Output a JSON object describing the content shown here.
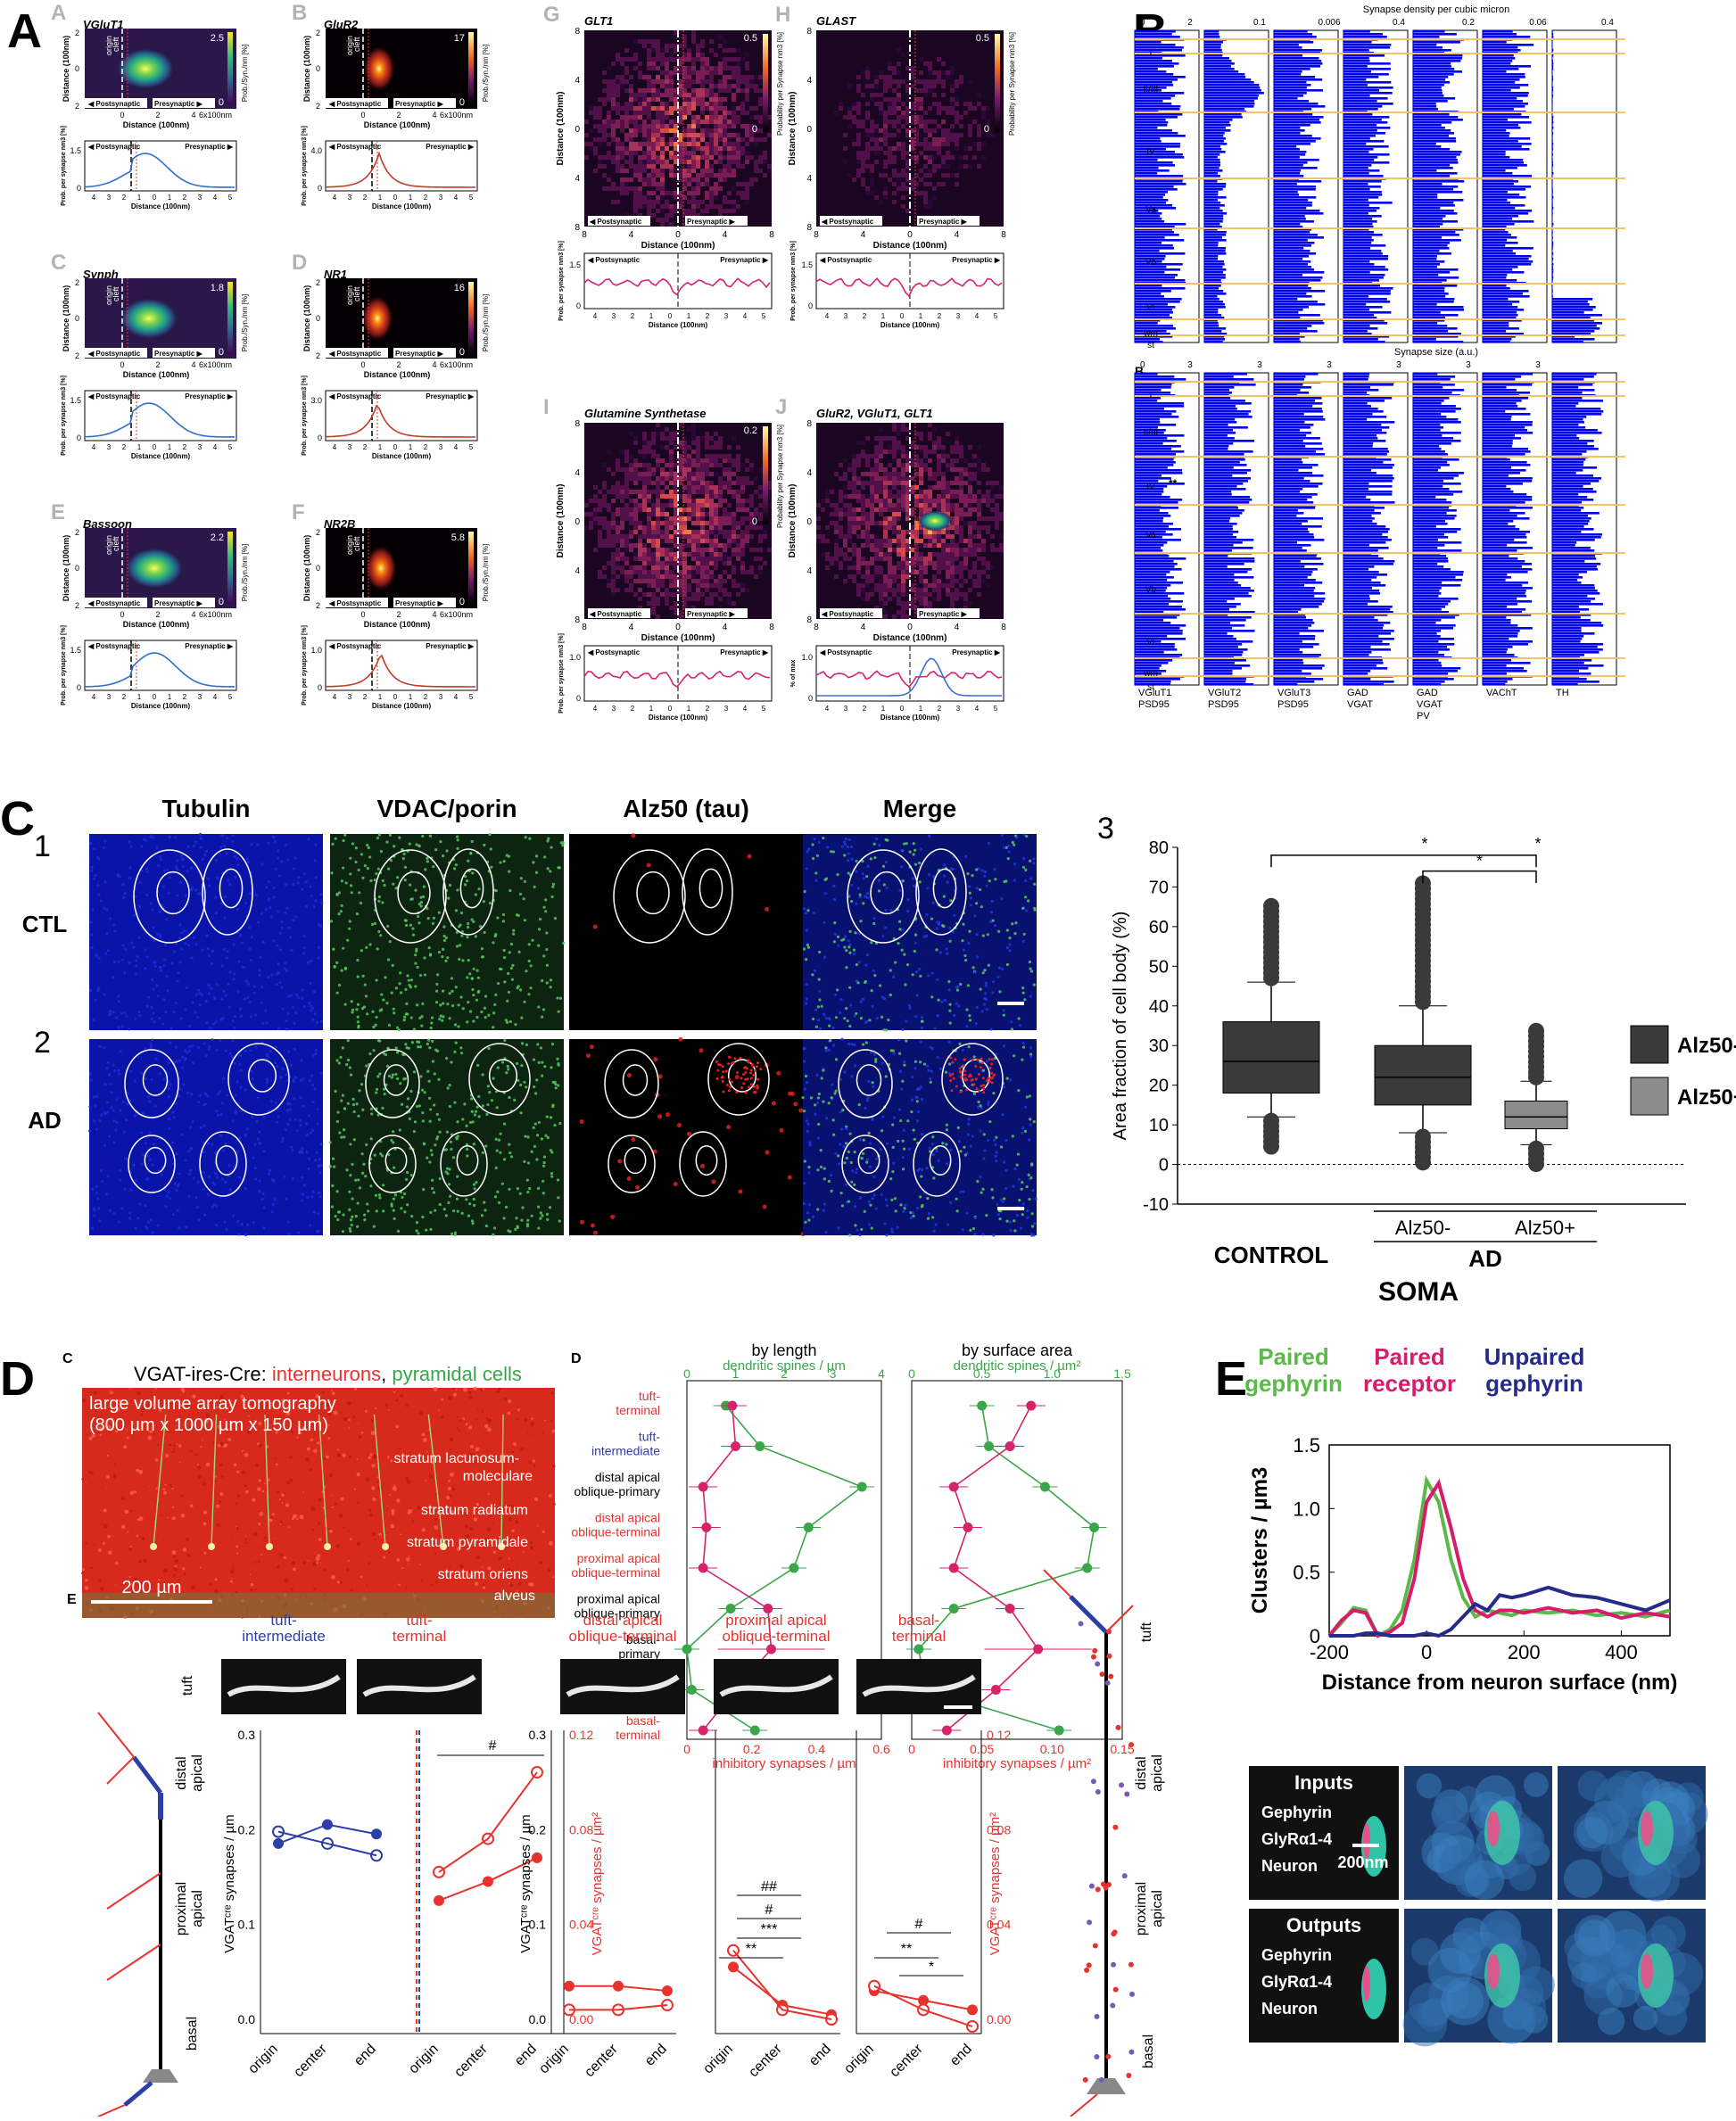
{
  "figure": {
    "panel_letters": {
      "A": "A",
      "B": "B",
      "C": "C",
      "D": "D",
      "E": "E"
    },
    "A": {
      "subpanels": [
        {
          "letter": "A",
          "name": "VGluT1",
          "max": "2.5",
          "pal": "viridis",
          "peak": 0.8
        },
        {
          "letter": "B",
          "name": "GluR2",
          "max": "17",
          "pal": "inferno",
          "peak": 0.4
        },
        {
          "letter": "C",
          "name": "Synph",
          "max": "1.8",
          "pal": "viridis",
          "peak": 1.0
        },
        {
          "letter": "D",
          "name": "NR1",
          "max": "16",
          "pal": "inferno",
          "peak": 0.3
        },
        {
          "letter": "E",
          "name": "Bassoon",
          "max": "2.2",
          "pal": "viridis",
          "peak": 1.3
        },
        {
          "letter": "F",
          "name": "NR2B",
          "max": "5.8",
          "pal": "inferno",
          "peak": 0.5
        }
      ],
      "square_subpanels": [
        {
          "letter": "G",
          "name": "GLT1",
          "max": "0.5"
        },
        {
          "letter": "H",
          "name": "GLAST",
          "max": "0.5"
        },
        {
          "letter": "I",
          "name": "Glutamine Synthetase",
          "max": "0.2"
        },
        {
          "letter": "J",
          "name": "GluR2, VGluT1, GLT1",
          "max": ""
        }
      ],
      "y_label": "Distance (100nm)",
      "x_label": "Distance (100nm)",
      "x_unit": "6x100nm",
      "cleft": "cleft",
      "origin": "origin",
      "postsynaptic": "Postsynaptic",
      "presynaptic": "Presynaptic",
      "prob_label": "Prob. per synapse nm3 [%]",
      "pctmax_label": "% of max",
      "cbar_label": "Prob./Syn./nm [%]",
      "cbar_label_sq": "Probability per Synapse nm3 [%]",
      "ticks_small": [
        "4",
        "3",
        "2",
        "1",
        "0",
        "1",
        "2",
        "3",
        "4",
        "5"
      ],
      "ticks_sq_y": [
        "8",
        "4",
        "0",
        "4",
        "8"
      ],
      "ticks_sq_x": [
        "8",
        "4",
        "0",
        "4",
        "8"
      ],
      "ticks_line_y": [
        "1.5",
        "1.0",
        "0.5",
        "0"
      ],
      "ticks_line_y_b": [
        "4.0",
        "3.0",
        "2.0",
        "1.0",
        "0"
      ],
      "ticks_heat_y": [
        "2",
        "0",
        "2"
      ],
      "ticks_heat_x": [
        "0",
        "2",
        "4"
      ],
      "ticks_line_ymax": {
        "VGluT1": "1.5",
        "GluR2": "4.0",
        "Synph": "1.5",
        "NR1": "3.0",
        "Bassoon": "1.5",
        "NR2B": "1.0",
        "GLT1": "1.5",
        "GLAST": "1.5",
        "Glutamine Synthetase": "1.0",
        "J": "1.0"
      }
    },
    "B": {
      "top_title": "Synapse density per cubic micron",
      "bottom_title": "Synapse size (a.u.)",
      "sub_a": "A",
      "sub_b": "B",
      "layers": [
        "I",
        "II/III",
        "IV",
        "Va",
        "Vb",
        "VI",
        "wm",
        "st"
      ],
      "top_axis_max": [
        "2",
        "0.1",
        "0.006",
        "0.4",
        "0.2",
        "0.06",
        "0.4"
      ],
      "top_axis_zero": "0",
      "bottom_axis_max": [
        "3",
        "3",
        "3",
        "3",
        "3",
        "3"
      ],
      "columns": [
        "VGluT1\nPSD95",
        "VGluT2\nPSD95",
        "VGluT3\nPSD95",
        "GAD\nVGAT",
        "GAD\nVGAT\nPV",
        "VAChT",
        "TH"
      ],
      "col_labels": [
        [
          "VGluT1",
          "PSD95"
        ],
        [
          "VGluT2",
          "PSD95"
        ],
        [
          "VGluT3",
          "PSD95"
        ],
        [
          "GAD",
          "VGAT"
        ],
        [
          "GAD",
          "VGAT",
          "PV"
        ],
        [
          "VAChT"
        ],
        [
          "TH"
        ]
      ],
      "star": "**"
    },
    "C": {
      "col_titles": [
        "Tubulin",
        "VDAC/porin",
        "Alz50 (tau)",
        "Merge"
      ],
      "row_nums": [
        "1",
        "2"
      ],
      "row_labels": [
        "CTL",
        "AD"
      ],
      "panel3_num": "3",
      "ylabel": "Area fraction of cell body (%)",
      "yticks": [
        "80",
        "70",
        "60",
        "50",
        "40",
        "30",
        "20",
        "10",
        "0",
        "-10"
      ],
      "legend": [
        "Alz50-",
        "Alz50+"
      ],
      "xgroups": [
        "CONTROL",
        "Alz50-",
        "Alz50+"
      ],
      "ad_label": "AD",
      "soma": "SOMA",
      "stars": [
        "*",
        "*",
        "*"
      ],
      "colors": {
        "alz50_neg": "#3a3a3a",
        "alz50_pos": "#8c8c8c"
      }
    },
    "D": {
      "sub_c": "C",
      "sub_d": "D",
      "sub_e": "E",
      "image_title": [
        "VGAT-ires-Cre: ",
        "interneurons",
        ", ",
        "pyramidal cells"
      ],
      "image_sub1": "large volume array tomography",
      "image_sub2": "(800 µm x 1000 µm x 150 µm)",
      "strata": [
        "stratum lacunosum-moleculare",
        "stratum radiatum",
        "stratum pyramidale",
        "stratum oriens",
        "alveus"
      ],
      "scale": "200 µm",
      "plot_titles": [
        "by length",
        "by surface area"
      ],
      "top_axis_labels": [
        "dendritic spines / µm",
        "dendritic spines / µm²"
      ],
      "bottom_axis_labels": [
        "inhibitory synapses / µm",
        "inhibitory synapses / µm²"
      ],
      "top_ticks_1": [
        "0",
        "1",
        "2",
        "3",
        "4"
      ],
      "top_ticks_2": [
        "0",
        "0.5",
        "1.0",
        "1.5"
      ],
      "bottom_ticks_1": [
        "0",
        "0.2",
        "0.4",
        "0.6"
      ],
      "bottom_ticks_2": [
        "0",
        "0.05",
        "0.10",
        "0.15"
      ],
      "rows": [
        {
          "label": "tuft-\nterminal",
          "color": "#e8322e"
        },
        {
          "label": "tuft-\nintermediate",
          "color": "#2c3ea8"
        },
        {
          "label": "distal apical\noblique-primary",
          "color": "#000000"
        },
        {
          "label": "distal apical\noblique-terminal",
          "color": "#e8322e"
        },
        {
          "label": "proximal apical\noblique-terminal",
          "color": "#e8322e"
        },
        {
          "label": "proximal apical\noblique-primary",
          "color": "#000000"
        },
        {
          "label": "basal-\nprimary",
          "color": "#000000"
        },
        {
          "label": "basal-\nintermediate",
          "color": "#2c3ea8"
        },
        {
          "label": "basal-\nterminal",
          "color": "#e8322e"
        }
      ],
      "e_titles": [
        {
          "text": "tuft-\nintermediate",
          "color": "#2c3ea8"
        },
        {
          "text": "tuft-\nterminal",
          "color": "#e8322e"
        },
        {
          "text": "distal apical\noblique-terminal",
          "color": "#e8322e"
        },
        {
          "text": "proximal apical\noblique-terminal",
          "color": "#e8322e"
        },
        {
          "text": "basal-\nterminal",
          "color": "#e8322e"
        }
      ],
      "e_side_labels": [
        "tuft",
        "distal\napical",
        "proximal\napical",
        "basal"
      ],
      "e_y_left": "VGATᶜʳᵉ synapses / µm",
      "e_y_right": "VGATᶜʳᵉ synapses / µm²",
      "e_left_ticks": [
        "0.3",
        "0.2",
        "0.1",
        "0.0"
      ],
      "e_right_ticks": [
        "0.12",
        "0.08",
        "0.04",
        "0.00"
      ],
      "e_x_ticks": [
        "origin",
        "center",
        "end"
      ],
      "sig": [
        "#",
        "##",
        "#",
        "***",
        "**",
        "#",
        "**",
        "*"
      ],
      "colors": {
        "red": "#e8322e",
        "green": "#3aa64a",
        "blue": "#2c3ea8",
        "pink": "#d6246b"
      }
    },
    "E": {
      "legend": [
        {
          "text": "Paired\ngephyrin",
          "color": "#5ab948"
        },
        {
          "text": "Paired\nreceptor",
          "color": "#d81b6a"
        },
        {
          "text": "Unpaired\ngephyrin",
          "color": "#252b8a"
        }
      ],
      "ylabel": "Clusters / µm3",
      "xlabel": "Distance from neuron surface (nm)",
      "yticks": [
        "1.5",
        "1.0",
        "0.5",
        "0"
      ],
      "xticks": [
        "-200",
        "0",
        "200",
        "400"
      ],
      "inputs_title": "Inputs",
      "outputs_title": "Outputs",
      "legend_items": [
        "Gephyrin",
        "GlyRα1-4",
        "Neuron"
      ],
      "scale": "200nm"
    }
  },
  "chart_data": [
    {
      "type": "box",
      "title": "",
      "ylabel": "Area fraction of cell body (%)",
      "xlabel": "SOMA",
      "ylim": [
        -10,
        80
      ],
      "categories": [
        "CONTROL",
        "AD Alz50-",
        "AD Alz50+"
      ],
      "series": [
        {
          "name": "Alz50-",
          "q1": 18,
          "median": 26,
          "q3": 36,
          "whisker_low": 12,
          "whisker_high": 46
        },
        {
          "name": "Alz50-",
          "q1": 15,
          "median": 22,
          "q3": 30,
          "whisker_low": 8,
          "whisker_high": 40
        },
        {
          "name": "Alz50+",
          "q1": 9,
          "median": 12,
          "q3": 16,
          "whisker_low": 5,
          "whisker_high": 21
        }
      ]
    },
    {
      "type": "line",
      "title": "",
      "xlabel": "Distance from neuron surface (nm)",
      "ylabel": "Clusters / µm3",
      "xlim": [
        -200,
        500
      ],
      "ylim": [
        0,
        1.5
      ],
      "x": [
        -200,
        -175,
        -150,
        -125,
        -100,
        -75,
        -50,
        -25,
        0,
        25,
        50,
        75,
        100,
        125,
        150,
        175,
        200,
        250,
        300,
        350,
        400,
        450,
        500
      ],
      "series": [
        {
          "name": "Paired gephyrin",
          "values": [
            0.0,
            0.1,
            0.22,
            0.2,
            0.0,
            0.05,
            0.2,
            0.6,
            1.22,
            1.05,
            0.6,
            0.3,
            0.15,
            0.2,
            0.18,
            0.16,
            0.2,
            0.18,
            0.2,
            0.16,
            0.18,
            0.15,
            0.2
          ]
        },
        {
          "name": "Paired receptor",
          "values": [
            0.0,
            0.12,
            0.2,
            0.18,
            0.0,
            0.03,
            0.1,
            0.45,
            1.05,
            1.2,
            0.85,
            0.45,
            0.2,
            0.15,
            0.2,
            0.2,
            0.18,
            0.22,
            0.18,
            0.2,
            0.14,
            0.18,
            0.15
          ]
        },
        {
          "name": "Unpaired gephyrin",
          "values": [
            0.0,
            0.0,
            0.0,
            0.02,
            0.02,
            0.0,
            0.0,
            0.0,
            0.02,
            0.0,
            0.05,
            0.15,
            0.25,
            0.2,
            0.32,
            0.3,
            0.32,
            0.38,
            0.32,
            0.3,
            0.25,
            0.2,
            0.28
          ]
        }
      ]
    },
    {
      "type": "line",
      "title": "by length",
      "xlabel": "inhibitory synapses / µm",
      "categories": [
        "tuft-terminal",
        "tuft-intermediate",
        "distal apical oblique-primary",
        "distal apical oblique-terminal",
        "proximal apical oblique-terminal",
        "proximal apical oblique-primary",
        "basal-primary",
        "basal-intermediate",
        "basal-terminal"
      ],
      "series": [
        {
          "name": "dendritic spines / µm",
          "values": [
            0.8,
            1.5,
            3.6,
            2.5,
            2.2,
            0.9,
            0.0,
            0.1,
            1.4
          ]
        },
        {
          "name": "inhibitory synapses / µm",
          "values": [
            0.14,
            0.15,
            0.05,
            0.06,
            0.05,
            0.25,
            0.26,
            0.15,
            0.05
          ]
        }
      ]
    },
    {
      "type": "line",
      "title": "by surface area",
      "xlabel": "inhibitory synapses / µm²",
      "categories": [
        "tuft-terminal",
        "tuft-intermediate",
        "distal apical oblique-primary",
        "distal apical oblique-terminal",
        "proximal apical oblique-terminal",
        "proximal apical oblique-primary",
        "basal-primary",
        "basal-intermediate",
        "basal-terminal"
      ],
      "series": [
        {
          "name": "dendritic spines / µm²",
          "values": [
            0.5,
            0.55,
            0.95,
            1.3,
            1.25,
            0.3,
            0.05,
            0.1,
            1.05
          ]
        },
        {
          "name": "inhibitory synapses / µm²",
          "values": [
            0.085,
            0.07,
            0.03,
            0.04,
            0.03,
            0.07,
            0.09,
            0.06,
            0.025
          ]
        }
      ]
    }
  ]
}
